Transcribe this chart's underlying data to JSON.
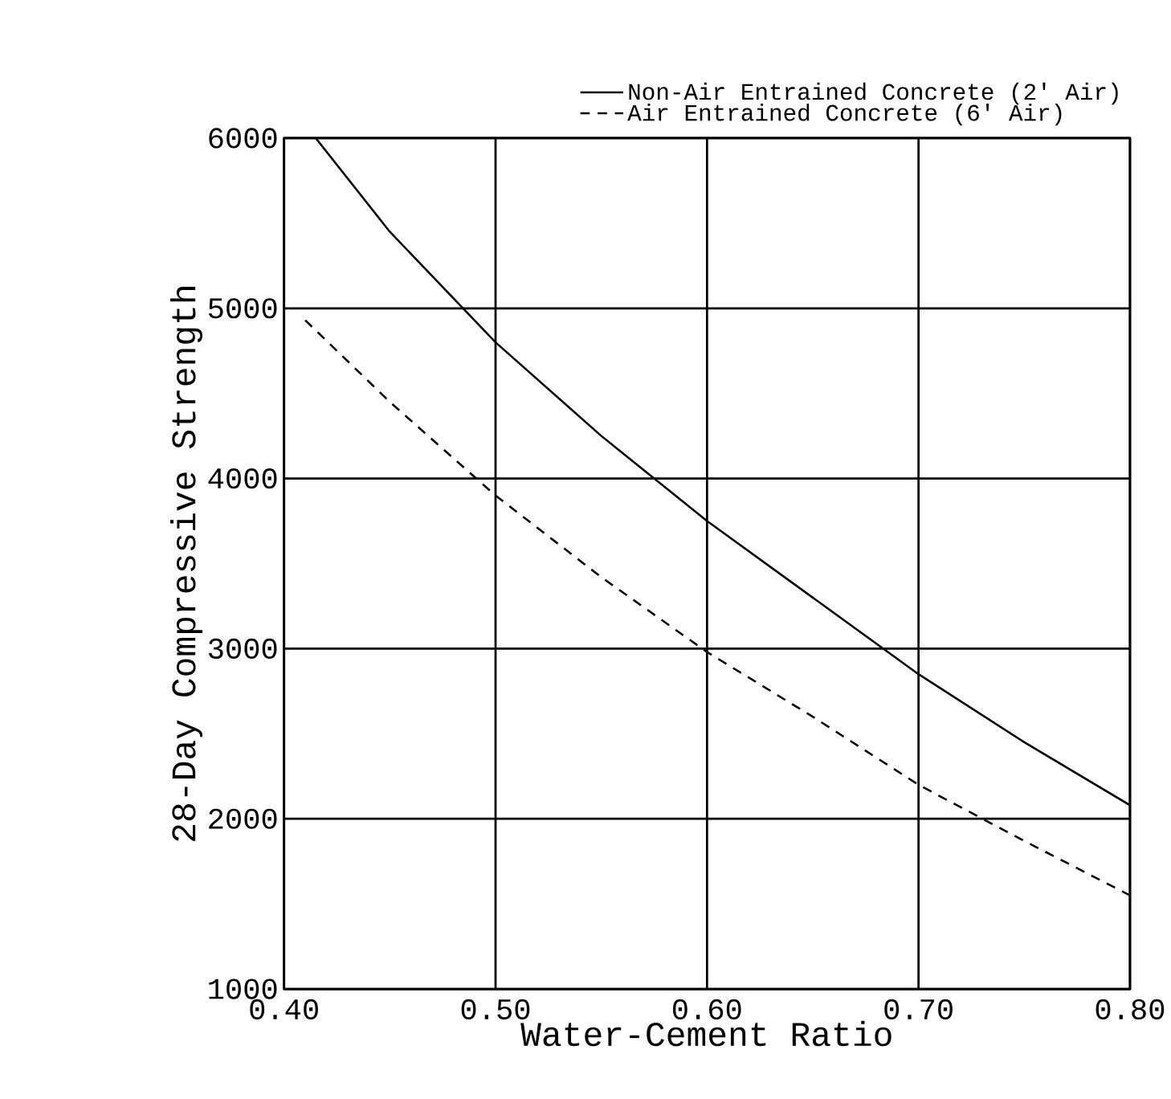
{
  "chart_data": {
    "type": "line",
    "xlabel": "Water-Cement Ratio",
    "ylabel": "28-Day Compressive Strength",
    "x": [
      0.41,
      0.45,
      0.5,
      0.55,
      0.6,
      0.65,
      0.7,
      0.75,
      0.8
    ],
    "series": [
      {
        "name": "Non-Air Entrained Concrete (2' Air)",
        "color": "#000000",
        "line_style": "solid",
        "x": [
          0.415,
          0.45,
          0.5,
          0.55,
          0.6,
          0.65,
          0.7,
          0.75,
          0.8
        ],
        "values": [
          6000,
          5450,
          4800,
          4250,
          3750,
          3300,
          2850,
          2450,
          2080
        ]
      },
      {
        "name": "Air Entrained Concrete (6' Air)",
        "color": "#000000",
        "line_style": "dashed",
        "values": [
          4930,
          4450,
          3900,
          3420,
          2980,
          2600,
          2200,
          1870,
          1550
        ]
      }
    ],
    "xlim": [
      0.4,
      0.8
    ],
    "ylim": [
      1000,
      6000
    ],
    "xticks": [
      {
        "value": 0.4,
        "label": "0.40"
      },
      {
        "value": 0.5,
        "label": "0.50"
      },
      {
        "value": 0.6,
        "label": "0.60"
      },
      {
        "value": 0.7,
        "label": "0.70"
      },
      {
        "value": 0.8,
        "label": "0.80"
      }
    ],
    "yticks": [
      1000,
      2000,
      3000,
      4000,
      5000,
      6000
    ],
    "grid": true,
    "legend": "top right",
    "marker": "none"
  }
}
